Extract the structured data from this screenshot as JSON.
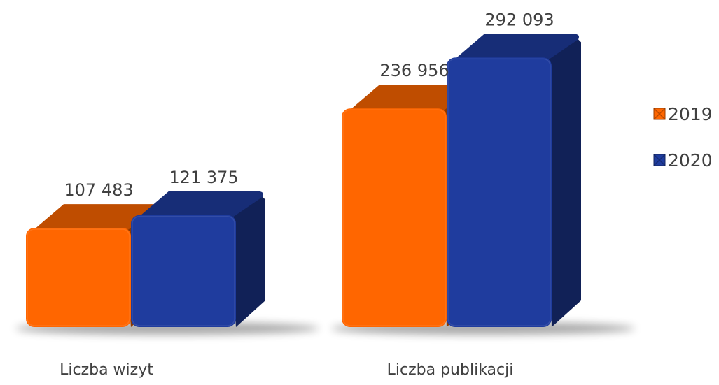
{
  "chart_data": {
    "type": "bar",
    "categories": [
      "Liczba wizyt",
      "Liczba publikacji"
    ],
    "series": [
      {
        "name": "2019",
        "values": [
          107483,
          236956
        ],
        "value_labels": [
          "107 483",
          "236 956"
        ],
        "color": "#ff6600"
      },
      {
        "name": "2020",
        "values": [
          121375,
          292093
        ],
        "value_labels": [
          "121 375",
          "292 093"
        ],
        "color": "#1f3c9e"
      }
    ],
    "legend_position": "right",
    "grid": false,
    "style": "3d-rounded-bars"
  }
}
